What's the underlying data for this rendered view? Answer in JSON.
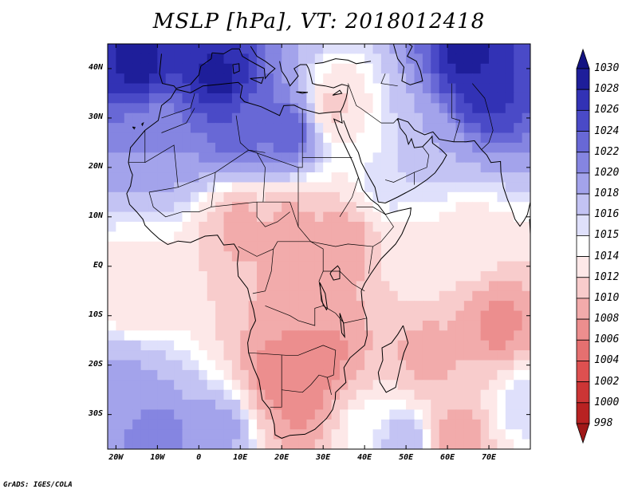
{
  "title": "MSLP [hPa], VT: 2018012418",
  "credit": "GrADS: IGES/COLA",
  "colors": {
    "frame": "#000000",
    "coastline": "#000000",
    "background": "#ffffff"
  },
  "lat_labels": [
    {
      "label": "40N",
      "lat": 40
    },
    {
      "label": "30N",
      "lat": 30
    },
    {
      "label": "20N",
      "lat": 20
    },
    {
      "label": "10N",
      "lat": 10
    },
    {
      "label": "EQ",
      "lat": 0
    },
    {
      "label": "10S",
      "lat": -10
    },
    {
      "label": "20S",
      "lat": -20
    },
    {
      "label": "30S",
      "lat": -30
    }
  ],
  "lon_labels": [
    {
      "label": "20W",
      "lon": -20
    },
    {
      "label": "10W",
      "lon": -10
    },
    {
      "label": "0",
      "lon": 0
    },
    {
      "label": "10E",
      "lon": 10
    },
    {
      "label": "20E",
      "lon": 20
    },
    {
      "label": "30E",
      "lon": 30
    },
    {
      "label": "40E",
      "lon": 40
    },
    {
      "label": "50E",
      "lon": 50
    },
    {
      "label": "60E",
      "lon": 60
    },
    {
      "label": "70E",
      "lon": 70
    }
  ],
  "domain": {
    "lon_min": -22,
    "lon_max": 80,
    "lat_min": -37,
    "lat_max": 45
  },
  "colorbar": {
    "levels": [
      "998",
      "1000",
      "1002",
      "1004",
      "1006",
      "1008",
      "1010",
      "1012",
      "1014",
      "1015",
      "1016",
      "1018",
      "1020",
      "1022",
      "1024",
      "1026",
      "1028",
      "1030"
    ],
    "colors": [
      "#a01818",
      "#b82222",
      "#cc3535",
      "#dd5050",
      "#e57070",
      "#ec8e8e",
      "#f2abab",
      "#f8cccc",
      "#fde8e8",
      "#ffffff",
      "#dfe0fb",
      "#c3c3f3",
      "#a3a3eb",
      "#8585e1",
      "#6868d6",
      "#4a4ac7",
      "#3232b5",
      "#1e1e9a",
      "#141482"
    ]
  },
  "pressure_field": {
    "description_units": "hPa",
    "background": 1012,
    "centers": [
      {
        "lon": -15,
        "lat": 42,
        "value": 1029
      },
      {
        "lon": 5,
        "lat": 38,
        "value": 1029
      },
      {
        "lon": 65,
        "lat": 42,
        "value": 1029
      },
      {
        "lon": 70,
        "lat": 35,
        "value": 1027
      },
      {
        "lon": 10,
        "lat": 28,
        "value": 1024
      },
      {
        "lon": -10,
        "lat": 25,
        "value": 1020
      },
      {
        "lon": 22,
        "lat": 27,
        "value": 1024
      },
      {
        "lon": 38,
        "lat": 27,
        "value": 1014
      },
      {
        "lon": 55,
        "lat": 25,
        "value": 1018
      },
      {
        "lon": 45,
        "lat": 17,
        "value": 1016
      },
      {
        "lon": 33,
        "lat": 32,
        "value": 1011
      },
      {
        "lon": 10,
        "lat": 8,
        "value": 1009
      },
      {
        "lon": 22,
        "lat": 8,
        "value": 1009
      },
      {
        "lon": 35,
        "lat": 5,
        "value": 1008
      },
      {
        "lon": 28,
        "lat": 0,
        "value": 1009
      },
      {
        "lon": 52,
        "lat": 2,
        "value": 1014
      },
      {
        "lon": 65,
        "lat": 5,
        "value": 1013
      },
      {
        "lon": 25,
        "lat": -10,
        "value": 1008
      },
      {
        "lon": 30,
        "lat": -18,
        "value": 1007
      },
      {
        "lon": 20,
        "lat": -22,
        "value": 1006
      },
      {
        "lon": 25,
        "lat": -27,
        "value": 1007
      },
      {
        "lon": 55,
        "lat": -18,
        "value": 1009
      },
      {
        "lon": 72,
        "lat": -12,
        "value": 1007
      },
      {
        "lon": -15,
        "lat": -5,
        "value": 1012
      },
      {
        "lon": -18,
        "lat": -25,
        "value": 1019
      },
      {
        "lon": -10,
        "lat": -35,
        "value": 1022
      },
      {
        "lon": 5,
        "lat": -33,
        "value": 1019
      },
      {
        "lon": 40,
        "lat": -33,
        "value": 1015
      },
      {
        "lon": 50,
        "lat": -36,
        "value": 1018
      },
      {
        "lon": 62,
        "lat": -36,
        "value": 1008
      },
      {
        "lon": 78,
        "lat": -28,
        "value": 1016
      }
    ]
  }
}
